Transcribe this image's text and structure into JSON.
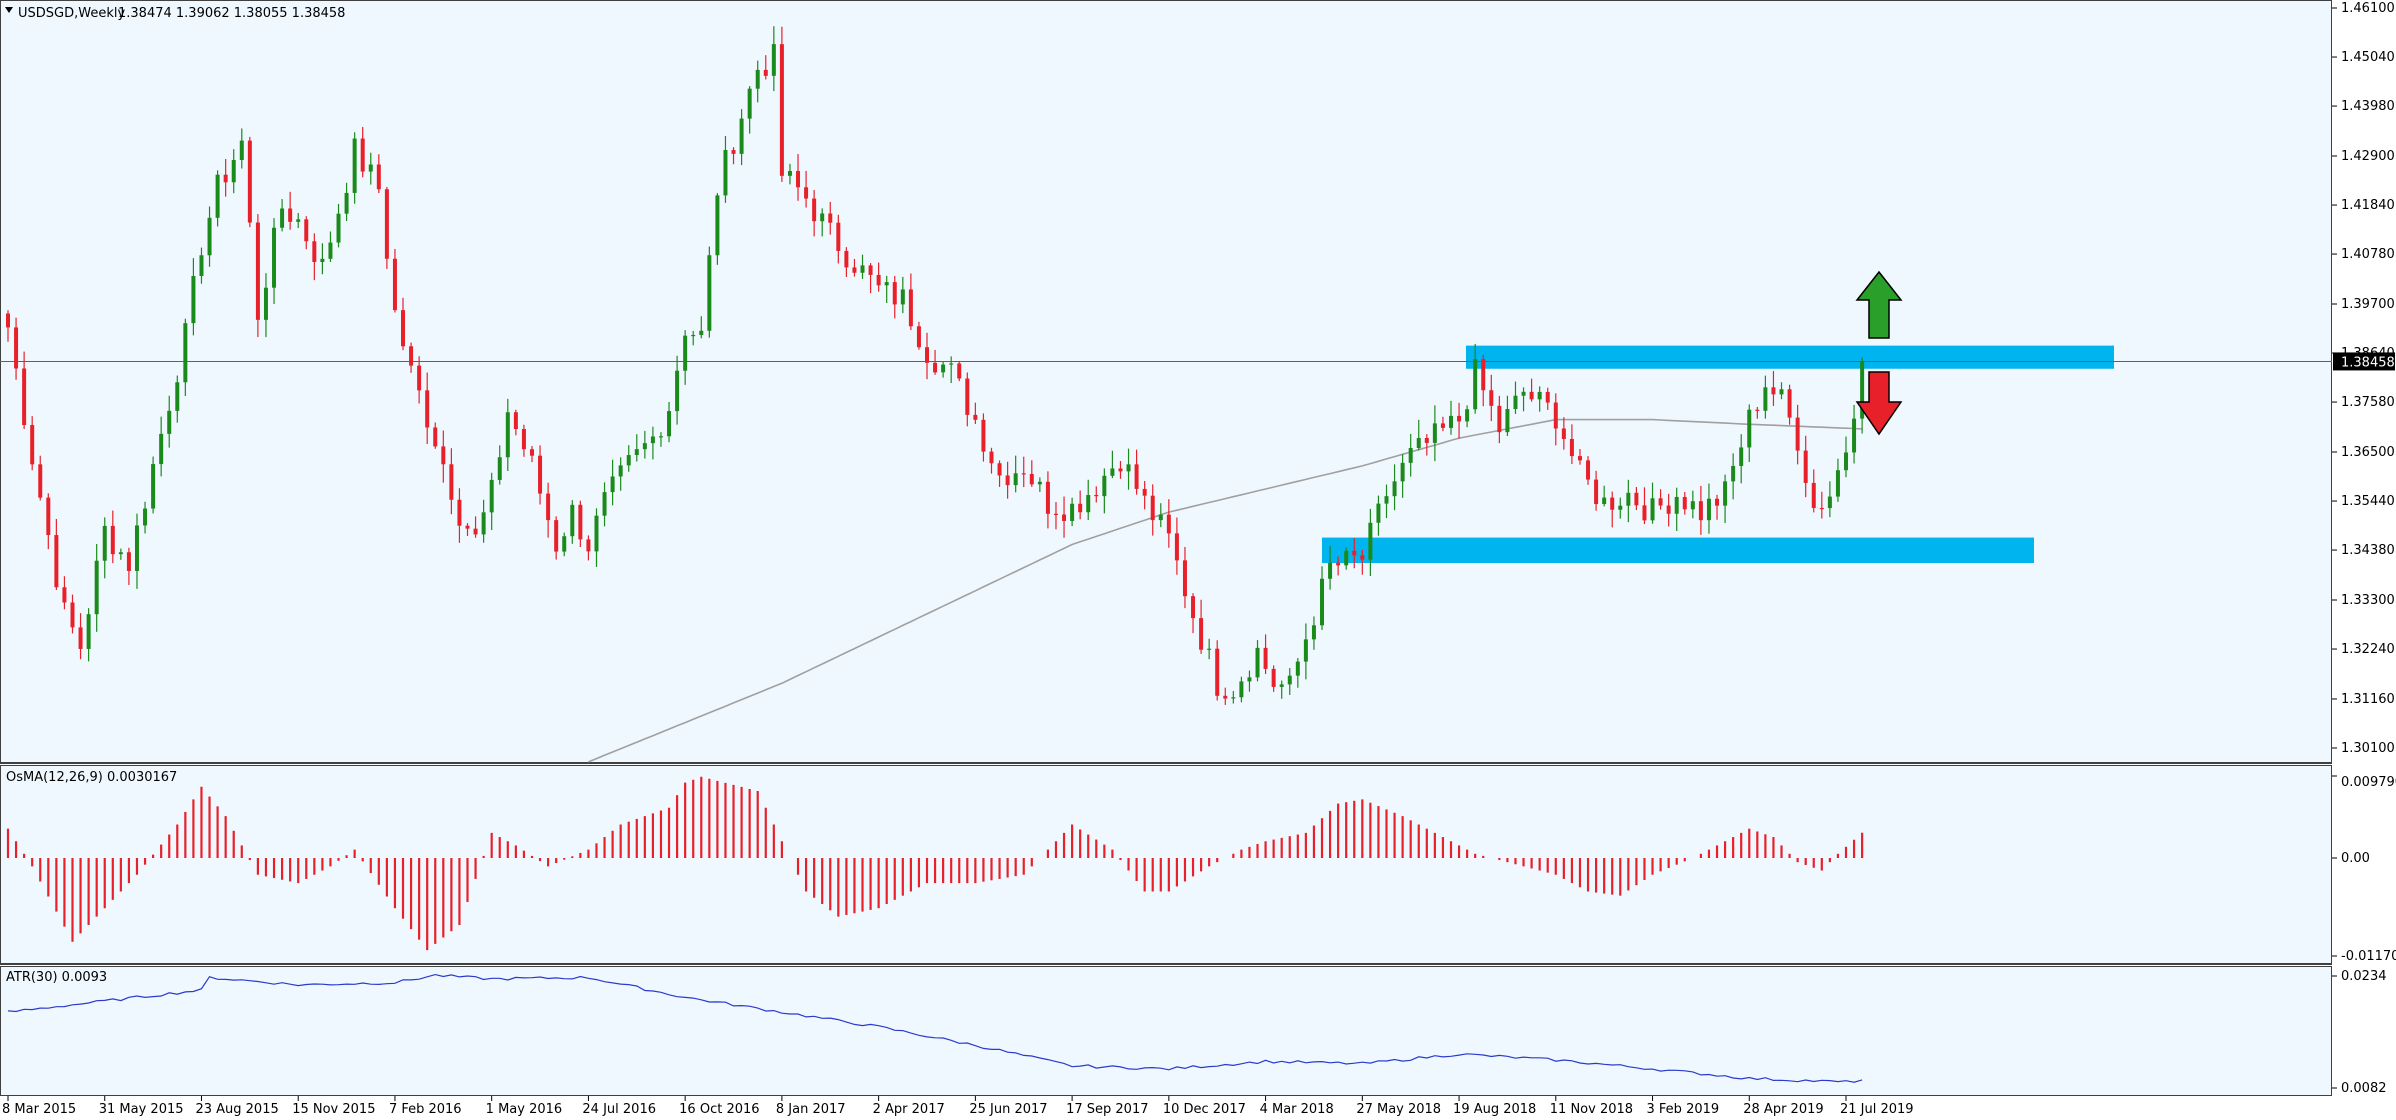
{
  "header": {
    "symbol_tf": "USDSGD,Weekly",
    "ohlc": "1.38474 1.39062 1.38055 1.38458"
  },
  "price_axis": {
    "ticks": [
      "1.46100",
      "1.45040",
      "1.43980",
      "1.42900",
      "1.41840",
      "1.40780",
      "1.39700",
      "1.38640",
      "1.37580",
      "1.36500",
      "1.35440",
      "1.34380",
      "1.33300",
      "1.32240",
      "1.31160",
      "1.30100"
    ],
    "current_price": "1.38458"
  },
  "osma_panel": {
    "label": "OsMA(12,26,9) 0.0030167",
    "ticks": [
      "0.0097909",
      "0.00",
      "-0.0117047"
    ]
  },
  "atr_panel": {
    "label": "ATR(30) 0.0093",
    "ticks": [
      "0.0234",
      "0.0082"
    ]
  },
  "time_axis": {
    "labels": [
      "8 Mar 2015",
      "31 May 2015",
      "23 Aug 2015",
      "15 Nov 2015",
      "7 Feb 2016",
      "1 May 2016",
      "24 Jul 2016",
      "16 Oct 2016",
      "8 Jan 2017",
      "2 Apr 2017",
      "25 Jun 2017",
      "17 Sep 2017",
      "10 Dec 2017",
      "4 Mar 2018",
      "27 May 2018",
      "19 Aug 2018",
      "11 Nov 2018",
      "3 Feb 2019",
      "28 Apr 2019",
      "21 Jul 2019"
    ]
  },
  "colors": {
    "background": "#f0f8ff",
    "bull": "#1a8a1a",
    "bear": "#e8202a",
    "zone": "#00b4f0",
    "ma": "#a0a0a0",
    "atr_line": "#2a3acc",
    "arrow_up": "#2aa02a",
    "arrow_down": "#e8202a"
  },
  "chart_data": {
    "type": "candlestick",
    "symbol": "USDSGD",
    "timeframe": "Weekly",
    "ylim": [
      1.2985,
      1.4615
    ],
    "zones": [
      {
        "from": 1.383,
        "to": 1.388
      },
      {
        "from": 1.341,
        "to": 1.3465
      }
    ],
    "horizontal_line": 1.38458,
    "arrows": [
      {
        "direction": "up",
        "x_label": "21 Jul 2019"
      },
      {
        "direction": "down",
        "x_label": "21 Jul 2019"
      }
    ],
    "price_anchors": [
      [
        "8 Mar 2015",
        1.392
      ],
      [
        "29 Mar 2015",
        1.364
      ],
      [
        "26 Apr 2015",
        1.33
      ],
      [
        "10 May 2015",
        1.323
      ],
      [
        "31 May 2015",
        1.348
      ],
      [
        "21 Jun 2015",
        1.341
      ],
      [
        "12 Jul 2015",
        1.362
      ],
      [
        "9 Aug 2015",
        1.39
      ],
      [
        "23 Aug 2015",
        1.41
      ],
      [
        "6 Sep 2015",
        1.422
      ],
      [
        "27 Sep 2015",
        1.432
      ],
      [
        "11 Oct 2015",
        1.395
      ],
      [
        "1 Nov 2015",
        1.418
      ],
      [
        "15 Nov 2015",
        1.415
      ],
      [
        "6 Dec 2015",
        1.405
      ],
      [
        "3 Jan 2016",
        1.43
      ],
      [
        "24 Jan 2016",
        1.422
      ],
      [
        "7 Feb 2016",
        1.395
      ],
      [
        "21 Feb 2016",
        1.382
      ],
      [
        "13 Mar 2016",
        1.368
      ],
      [
        "3 Apr 2016",
        1.352
      ],
      [
        "17 Apr 2016",
        1.346
      ],
      [
        "1 May 2016",
        1.356
      ],
      [
        "15 May 2016",
        1.374
      ],
      [
        "5 Jun 2016",
        1.362
      ],
      [
        "26 Jun 2016",
        1.345
      ],
      [
        "10 Jul 2016",
        1.352
      ],
      [
        "24 Jul 2016",
        1.345
      ],
      [
        "7 Aug 2016",
        1.354
      ],
      [
        "28 Aug 2016",
        1.362
      ],
      [
        "18 Sep 2016",
        1.368
      ],
      [
        "2 Oct 2016",
        1.375
      ],
      [
        "16 Oct 2016",
        1.392
      ],
      [
        "30 Oct 2016",
        1.39
      ],
      [
        "13 Nov 2016",
        1.422
      ],
      [
        "4 Dec 2016",
        1.438
      ],
      [
        "18 Dec 2016",
        1.448
      ],
      [
        "1 Jan 2017",
        1.45
      ],
      [
        "8 Jan 2017",
        1.425
      ],
      [
        "29 Jan 2017",
        1.42
      ],
      [
        "19 Feb 2017",
        1.412
      ],
      [
        "12 Mar 2017",
        1.406
      ],
      [
        "2 Apr 2017",
        1.4
      ],
      [
        "23 Apr 2017",
        1.398
      ],
      [
        "14 May 2017",
        1.387
      ],
      [
        "4 Jun 2017",
        1.382
      ],
      [
        "25 Jun 2017",
        1.372
      ],
      [
        "16 Jul 2017",
        1.36
      ],
      [
        "6 Aug 2017",
        1.362
      ],
      [
        "27 Aug 2017",
        1.354
      ],
      [
        "17 Sep 2017",
        1.353
      ],
      [
        "8 Oct 2017",
        1.358
      ],
      [
        "29 Oct 2017",
        1.364
      ],
      [
        "19 Nov 2017",
        1.354
      ],
      [
        "10 Dec 2017",
        1.346
      ],
      [
        "31 Dec 2017",
        1.33
      ],
      [
        "21 Jan 2018",
        1.315
      ],
      [
        "4 Feb 2018",
        1.314
      ],
      [
        "25 Feb 2018",
        1.322
      ],
      [
        "11 Mar 2018",
        1.315
      ],
      [
        "25 Mar 2018",
        1.314
      ],
      [
        "8 Apr 2018",
        1.325
      ],
      [
        "29 Apr 2018",
        1.34
      ],
      [
        "27 May 2018",
        1.342
      ],
      [
        "17 Jun 2018",
        1.356
      ],
      [
        "8 Jul 2018",
        1.364
      ],
      [
        "29 Jul 2018",
        1.368
      ],
      [
        "19 Aug 2018",
        1.372
      ],
      [
        "2 Sep 2018",
        1.382
      ],
      [
        "23 Sep 2018",
        1.37
      ],
      [
        "14 Oct 2018",
        1.378
      ],
      [
        "11 Nov 2018",
        1.373
      ],
      [
        "2 Dec 2018",
        1.36
      ],
      [
        "23 Dec 2018",
        1.354
      ],
      [
        "13 Jan 2019",
        1.356
      ],
      [
        "3 Feb 2019",
        1.352
      ],
      [
        "24 Feb 2019",
        1.356
      ],
      [
        "17 Mar 2019",
        1.352
      ],
      [
        "7 Apr 2019",
        1.356
      ],
      [
        "28 Apr 2019",
        1.372
      ],
      [
        "12 May 2019",
        1.38
      ],
      [
        "26 May 2019",
        1.376
      ],
      [
        "9 Jun 2019",
        1.368
      ],
      [
        "23 Jun 2019",
        1.353
      ],
      [
        "7 Jul 2019",
        1.356
      ],
      [
        "21 Jul 2019",
        1.366
      ],
      [
        "4 Aug 2019",
        1.38458
      ]
    ],
    "ma_anchors": [
      [
        "24 Jul 2016",
        1.298
      ],
      [
        "8 Jan 2017",
        1.315
      ],
      [
        "17 Sep 2017",
        1.345
      ],
      [
        "10 Dec 2017",
        1.352
      ],
      [
        "27 May 2018",
        1.362
      ],
      [
        "19 Aug 2018",
        1.368
      ],
      [
        "11 Nov 2018",
        1.372
      ],
      [
        "3 Feb 2019",
        1.372
      ],
      [
        "28 Apr 2019",
        1.371
      ],
      [
        "4 Aug 2019",
        1.37
      ]
    ],
    "osma_anchors": [
      [
        "8 Mar 2015",
        0.0035
      ],
      [
        "29 Mar 2015",
        -0.001
      ],
      [
        "3 May 2015",
        -0.01
      ],
      [
        "24 May 2015",
        -0.007
      ],
      [
        "28 Jun 2015",
        -0.002
      ],
      [
        "2 Aug 2015",
        0.004
      ],
      [
        "23 Aug 2015",
        0.0085
      ],
      [
        "13 Sep 2015",
        0.005
      ],
      [
        "11 Oct 2015",
        -0.002
      ],
      [
        "15 Nov 2015",
        -0.003
      ],
      [
        "13 Dec 2015",
        -0.001
      ],
      [
        "3 Jan 2016",
        0.001
      ],
      [
        "7 Feb 2016",
        -0.006
      ],
      [
        "6 Mar 2016",
        -0.011
      ],
      [
        "3 Apr 2016",
        -0.008
      ],
      [
        "1 May 2016",
        0.003
      ],
      [
        "22 May 2016",
        0.0015
      ],
      [
        "19 Jun 2016",
        -0.001
      ],
      [
        "24 Jul 2016",
        0.001
      ],
      [
        "21 Aug 2016",
        0.004
      ],
      [
        "2 Oct 2016",
        0.006
      ],
      [
        "16 Oct 2016",
        0.009
      ],
      [
        "30 Oct 2016",
        0.0097
      ],
      [
        "18 Dec 2016",
        0.008
      ],
      [
        "8 Jan 2017",
        0.002
      ],
      [
        "29 Jan 2017",
        -0.004
      ],
      [
        "26 Feb 2017",
        -0.007
      ],
      [
        "2 Apr 2017",
        -0.006
      ],
      [
        "14 May 2017",
        -0.003
      ],
      [
        "25 Jun 2017",
        -0.003
      ],
      [
        "6 Aug 2017",
        -0.002
      ],
      [
        "3 Sep 2017",
        0.002
      ],
      [
        "17 Sep 2017",
        0.004
      ],
      [
        "22 Oct 2017",
        0.001
      ],
      [
        "19 Nov 2017",
        -0.004
      ],
      [
        "10 Dec 2017",
        -0.004
      ],
      [
        "14 Jan 2018",
        -0.001
      ],
      [
        "11 Feb 2018",
        0.001
      ],
      [
        "4 Mar 2018",
        0.002
      ],
      [
        "8 Apr 2018",
        0.003
      ],
      [
        "6 May 2018",
        0.0065
      ],
      [
        "27 May 2018",
        0.007
      ],
      [
        "1 Jul 2018",
        0.005
      ],
      [
        "12 Aug 2018",
        0.002
      ],
      [
        "2 Sep 2018",
        0.0005
      ],
      [
        "30 Sep 2018",
        -0.0005
      ],
      [
        "11 Nov 2018",
        -0.002
      ],
      [
        "9 Dec 2018",
        -0.004
      ],
      [
        "6 Jan 2019",
        -0.0045
      ],
      [
        "3 Feb 2019",
        -0.002
      ],
      [
        "10 Mar 2019",
        0.0
      ],
      [
        "7 Apr 2019",
        0.002
      ],
      [
        "28 Apr 2019",
        0.0035
      ],
      [
        "19 May 2019",
        0.0025
      ],
      [
        "9 Jun 2019",
        -0.0005
      ],
      [
        "30 Jun 2019",
        -0.0015
      ],
      [
        "14 Jul 2019",
        0.0005
      ],
      [
        "4 Aug 2019",
        0.0030167
      ]
    ],
    "atr_anchors": [
      [
        "8 Mar 2015",
        0.0185
      ],
      [
        "31 May 2015",
        0.02
      ],
      [
        "23 Aug 2015",
        0.0215
      ],
      [
        "30 Aug 2015",
        0.0232
      ],
      [
        "15 Nov 2015",
        0.0222
      ],
      [
        "7 Feb 2016",
        0.0225
      ],
      [
        "13 Mar 2016",
        0.0235
      ],
      [
        "1 May 2016",
        0.023
      ],
      [
        "24 Jul 2016",
        0.0232
      ],
      [
        "16 Oct 2016",
        0.0205
      ],
      [
        "8 Jan 2017",
        0.0185
      ],
      [
        "2 Apr 2017",
        0.0165
      ],
      [
        "25 Jun 2017",
        0.014
      ],
      [
        "17 Sep 2017",
        0.0112
      ],
      [
        "10 Dec 2017",
        0.0108
      ],
      [
        "4 Mar 2018",
        0.0118
      ],
      [
        "27 May 2018",
        0.0115
      ],
      [
        "19 Aug 2018",
        0.0128
      ],
      [
        "11 Nov 2018",
        0.012
      ],
      [
        "3 Feb 2019",
        0.0108
      ],
      [
        "28 Apr 2019",
        0.0095
      ],
      [
        "21 Jul 2019",
        0.009
      ],
      [
        "4 Aug 2019",
        0.0093
      ]
    ]
  }
}
